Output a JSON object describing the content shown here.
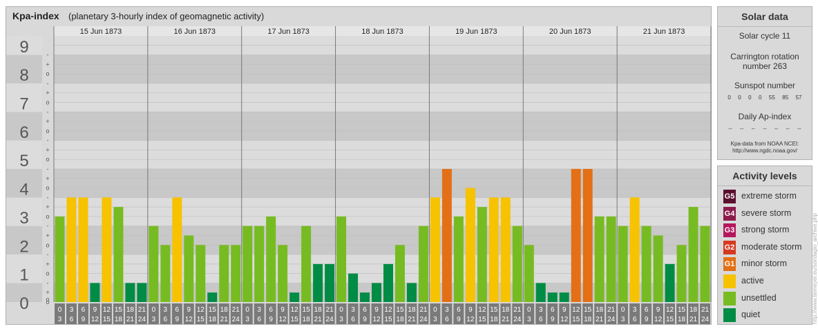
{
  "header": {
    "title": "Kpa-index",
    "subtitle": "(planetary 3-hourly index of geomagnetic activity)"
  },
  "chart_data": {
    "type": "bar",
    "days": [
      "15 Jun 1873",
      "16 Jun 1873",
      "17 Jun 1873",
      "18 Jun 1873",
      "19 Jun 1873",
      "20 Jun 1873",
      "21 Jun 1873"
    ],
    "interval_labels": [
      [
        "0",
        "3"
      ],
      [
        "3",
        "6"
      ],
      [
        "6",
        "9"
      ],
      [
        "9",
        "12"
      ],
      [
        "12",
        "15"
      ],
      [
        "15",
        "18"
      ],
      [
        "18",
        "21"
      ],
      [
        "21",
        "24"
      ]
    ],
    "y_labels": [
      "0",
      "1",
      "2",
      "3",
      "4",
      "5",
      "6",
      "7",
      "8",
      "9"
    ],
    "minor_tick_labels": [
      "-",
      "o",
      "+"
    ],
    "ylim": [
      0,
      9.333
    ],
    "values": [
      [
        3.0,
        3.667,
        3.667,
        0.667,
        3.667,
        3.333,
        0.667,
        0.667
      ],
      [
        2.667,
        2.0,
        3.667,
        2.333,
        2.0,
        0.333,
        2.0,
        2.0
      ],
      [
        2.667,
        2.667,
        3.0,
        2.0,
        0.333,
        2.667,
        1.333,
        1.333
      ],
      [
        3.0,
        1.0,
        0.333,
        0.667,
        1.333,
        2.0,
        0.667,
        2.667
      ],
      [
        3.667,
        4.667,
        3.0,
        4.0,
        3.333,
        3.667,
        3.667,
        2.667
      ],
      [
        2.0,
        0.667,
        0.333,
        0.333,
        4.667,
        4.667,
        3.0,
        3.0
      ],
      [
        2.667,
        3.667,
        2.667,
        2.333,
        1.333,
        2.0,
        3.333,
        2.667
      ]
    ],
    "colors": {
      "quiet": "#008c44",
      "unsettled": "#77bb22",
      "active": "#f7c200",
      "minor_storm": "#e37016"
    }
  },
  "solar": {
    "title": "Solar data",
    "cycle": "Solar cycle 11",
    "carrington_line1": "Carrington rotation",
    "carrington_line2": "number 263",
    "sunspot_label": "Sunspot number",
    "sunspots": [
      "0",
      "0",
      "0",
      "0",
      "55",
      "85",
      "57"
    ],
    "ap_label": "Daily Ap-index",
    "ap": [
      "--",
      "--",
      "--",
      "--",
      "--",
      "--",
      "--"
    ],
    "credit_line1": "Kpa-data from NOAA NCEI:",
    "credit_line2": "http://www.ngdc.noaa.gov/"
  },
  "activity": {
    "title": "Activity levels",
    "items": [
      {
        "code": "G5",
        "label": "extreme storm",
        "color": "#5a0f2e"
      },
      {
        "code": "G4",
        "label": "severe storm",
        "color": "#8c1a4b"
      },
      {
        "code": "G3",
        "label": "strong storm",
        "color": "#b5165d"
      },
      {
        "code": "G2",
        "label": "moderate storm",
        "color": "#d53a1e"
      },
      {
        "code": "G1",
        "label": "minor storm",
        "color": "#e37016"
      },
      {
        "code": "",
        "label": "active",
        "color": "#f7c200"
      },
      {
        "code": "",
        "label": "unsettled",
        "color": "#77bb22"
      },
      {
        "code": "",
        "label": "quiet",
        "color": "#008c44"
      }
    ]
  },
  "watermark": "http://www.tiemeyer.eu/sondagio_archive.php"
}
